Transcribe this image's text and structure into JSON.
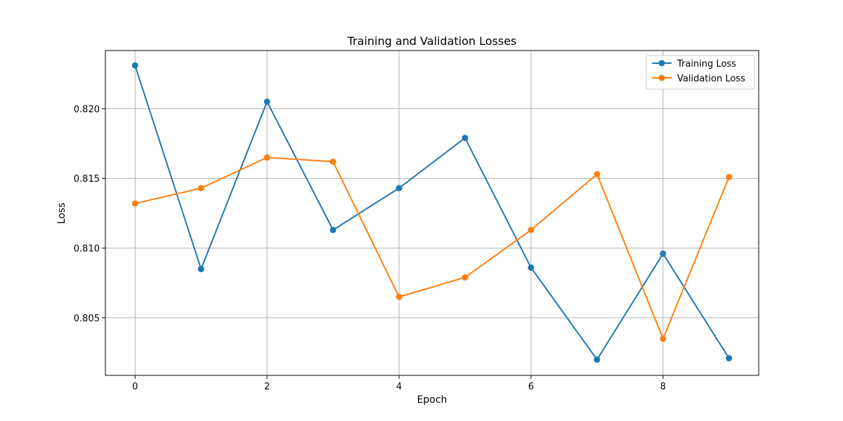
{
  "chart_data": {
    "type": "line",
    "title": "Training and Validation Losses",
    "xlabel": "Epoch",
    "ylabel": "Loss",
    "x": [
      0,
      1,
      2,
      3,
      4,
      5,
      6,
      7,
      8,
      9
    ],
    "xlim": [
      -0.45,
      9.45
    ],
    "ylim": [
      0.80087,
      0.82417
    ],
    "xticks": [
      0,
      2,
      4,
      6,
      8
    ],
    "yticks": [
      0.805,
      0.81,
      0.815,
      0.82
    ],
    "xtick_labels": [
      "0",
      "2",
      "4",
      "6",
      "8"
    ],
    "ytick_labels": [
      "0.805",
      "0.810",
      "0.815",
      "0.820"
    ],
    "grid": true,
    "legend_position": "top-right",
    "series": [
      {
        "name": "Training Loss",
        "color": "#1f77b4",
        "marker": "circle",
        "values": [
          0.8231,
          0.8085,
          0.8205,
          0.8113,
          0.8143,
          0.8179,
          0.8086,
          0.802,
          0.8096,
          0.8021
        ]
      },
      {
        "name": "Validation Loss",
        "color": "#ff7f0e",
        "marker": "circle",
        "values": [
          0.8132,
          0.8143,
          0.8165,
          0.8162,
          0.8065,
          0.8079,
          0.8113,
          0.8153,
          0.8035,
          0.8151
        ]
      }
    ]
  }
}
